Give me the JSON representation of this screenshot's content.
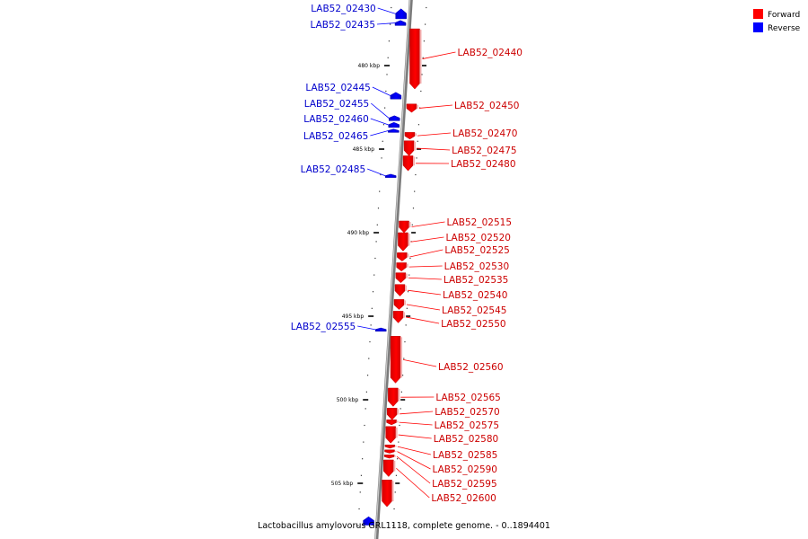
{
  "caption": "Lactobacillus amylovorus GRL1118, complete genome. - 0..1894401",
  "legend": {
    "placement": "top-right",
    "items": [
      {
        "label": "Forward",
        "color": "#ff0000"
      },
      {
        "label": "Reverse",
        "color": "#0000ff"
      }
    ]
  },
  "colors": {
    "forward": "#ff0000",
    "reverse": "#0000ff",
    "backbone": "#888888"
  },
  "scale": {
    "unit": "kbp",
    "ticks": [
      {
        "kbp": 480,
        "label": "480 kbp"
      },
      {
        "kbp": 485,
        "label": "485 kbp"
      },
      {
        "kbp": 490,
        "label": "490 kbp"
      },
      {
        "kbp": 495,
        "label": "495 kbp"
      },
      {
        "kbp": 500,
        "label": "500 kbp"
      },
      {
        "kbp": 505,
        "label": "505 kbp"
      }
    ]
  },
  "genes": [
    {
      "id": "LAB52_02430",
      "strand": "reverse",
      "start": 476.6,
      "end": 477.2
    },
    {
      "id": "LAB52_02435",
      "strand": "reverse",
      "start": 477.3,
      "end": 477.6
    },
    {
      "id": "LAB52_02440",
      "strand": "forward",
      "start": 477.8,
      "end": 481.4
    },
    {
      "id": "LAB52_02445",
      "strand": "reverse",
      "start": 481.6,
      "end": 482.0
    },
    {
      "id": "LAB52_02450",
      "strand": "forward",
      "start": 482.3,
      "end": 482.8
    },
    {
      "id": "LAB52_02455",
      "strand": "reverse",
      "start": 483.0,
      "end": 483.3
    },
    {
      "id": "LAB52_02460",
      "strand": "reverse",
      "start": 483.4,
      "end": 483.7
    },
    {
      "id": "LAB52_02465",
      "strand": "reverse",
      "start": 483.8,
      "end": 484.0
    },
    {
      "id": "LAB52_02470",
      "strand": "forward",
      "start": 484.0,
      "end": 484.4
    },
    {
      "id": "LAB52_02475",
      "strand": "forward",
      "start": 484.5,
      "end": 485.4
    },
    {
      "id": "LAB52_02480",
      "strand": "forward",
      "start": 485.4,
      "end": 486.3
    },
    {
      "id": "LAB52_02485",
      "strand": "reverse",
      "start": 486.5,
      "end": 486.7
    },
    {
      "id": "LAB52_02515",
      "strand": "forward",
      "start": 489.3,
      "end": 490.0
    },
    {
      "id": "LAB52_02520",
      "strand": "forward",
      "start": 490.0,
      "end": 491.1
    },
    {
      "id": "LAB52_02525",
      "strand": "forward",
      "start": 491.2,
      "end": 491.7
    },
    {
      "id": "LAB52_02530",
      "strand": "forward",
      "start": 491.8,
      "end": 492.3
    },
    {
      "id": "LAB52_02535",
      "strand": "forward",
      "start": 492.4,
      "end": 493.0
    },
    {
      "id": "LAB52_02540",
      "strand": "forward",
      "start": 493.1,
      "end": 493.8
    },
    {
      "id": "LAB52_02545",
      "strand": "forward",
      "start": 494.0,
      "end": 494.6
    },
    {
      "id": "LAB52_02550",
      "strand": "forward",
      "start": 494.7,
      "end": 495.4
    },
    {
      "id": "LAB52_02555",
      "strand": "reverse",
      "start": 495.7,
      "end": 495.9
    },
    {
      "id": "LAB52_02560",
      "strand": "forward",
      "start": 496.2,
      "end": 499.0
    },
    {
      "id": "LAB52_02565",
      "strand": "forward",
      "start": 499.3,
      "end": 500.4
    },
    {
      "id": "LAB52_02570",
      "strand": "forward",
      "start": 500.5,
      "end": 501.2
    },
    {
      "id": "LAB52_02575",
      "strand": "forward",
      "start": 501.2,
      "end": 501.5
    },
    {
      "id": "LAB52_02580",
      "strand": "forward",
      "start": 501.6,
      "end": 502.6
    },
    {
      "id": "LAB52_02585",
      "strand": "forward",
      "start": 502.7,
      "end": 502.9
    },
    {
      "id": "LAB52_02590",
      "strand": "forward",
      "start": 503.0,
      "end": 503.2
    },
    {
      "id": "LAB52_02595",
      "strand": "forward",
      "start": 503.3,
      "end": 503.5
    },
    {
      "id": "LAB52_02600",
      "strand": "forward",
      "start": 503.6,
      "end": 504.6
    },
    {
      "id": "",
      "strand": "forward",
      "start": 504.8,
      "end": 506.4
    },
    {
      "id": "",
      "strand": "reverse",
      "start": 507.0,
      "end": 507.5
    }
  ]
}
